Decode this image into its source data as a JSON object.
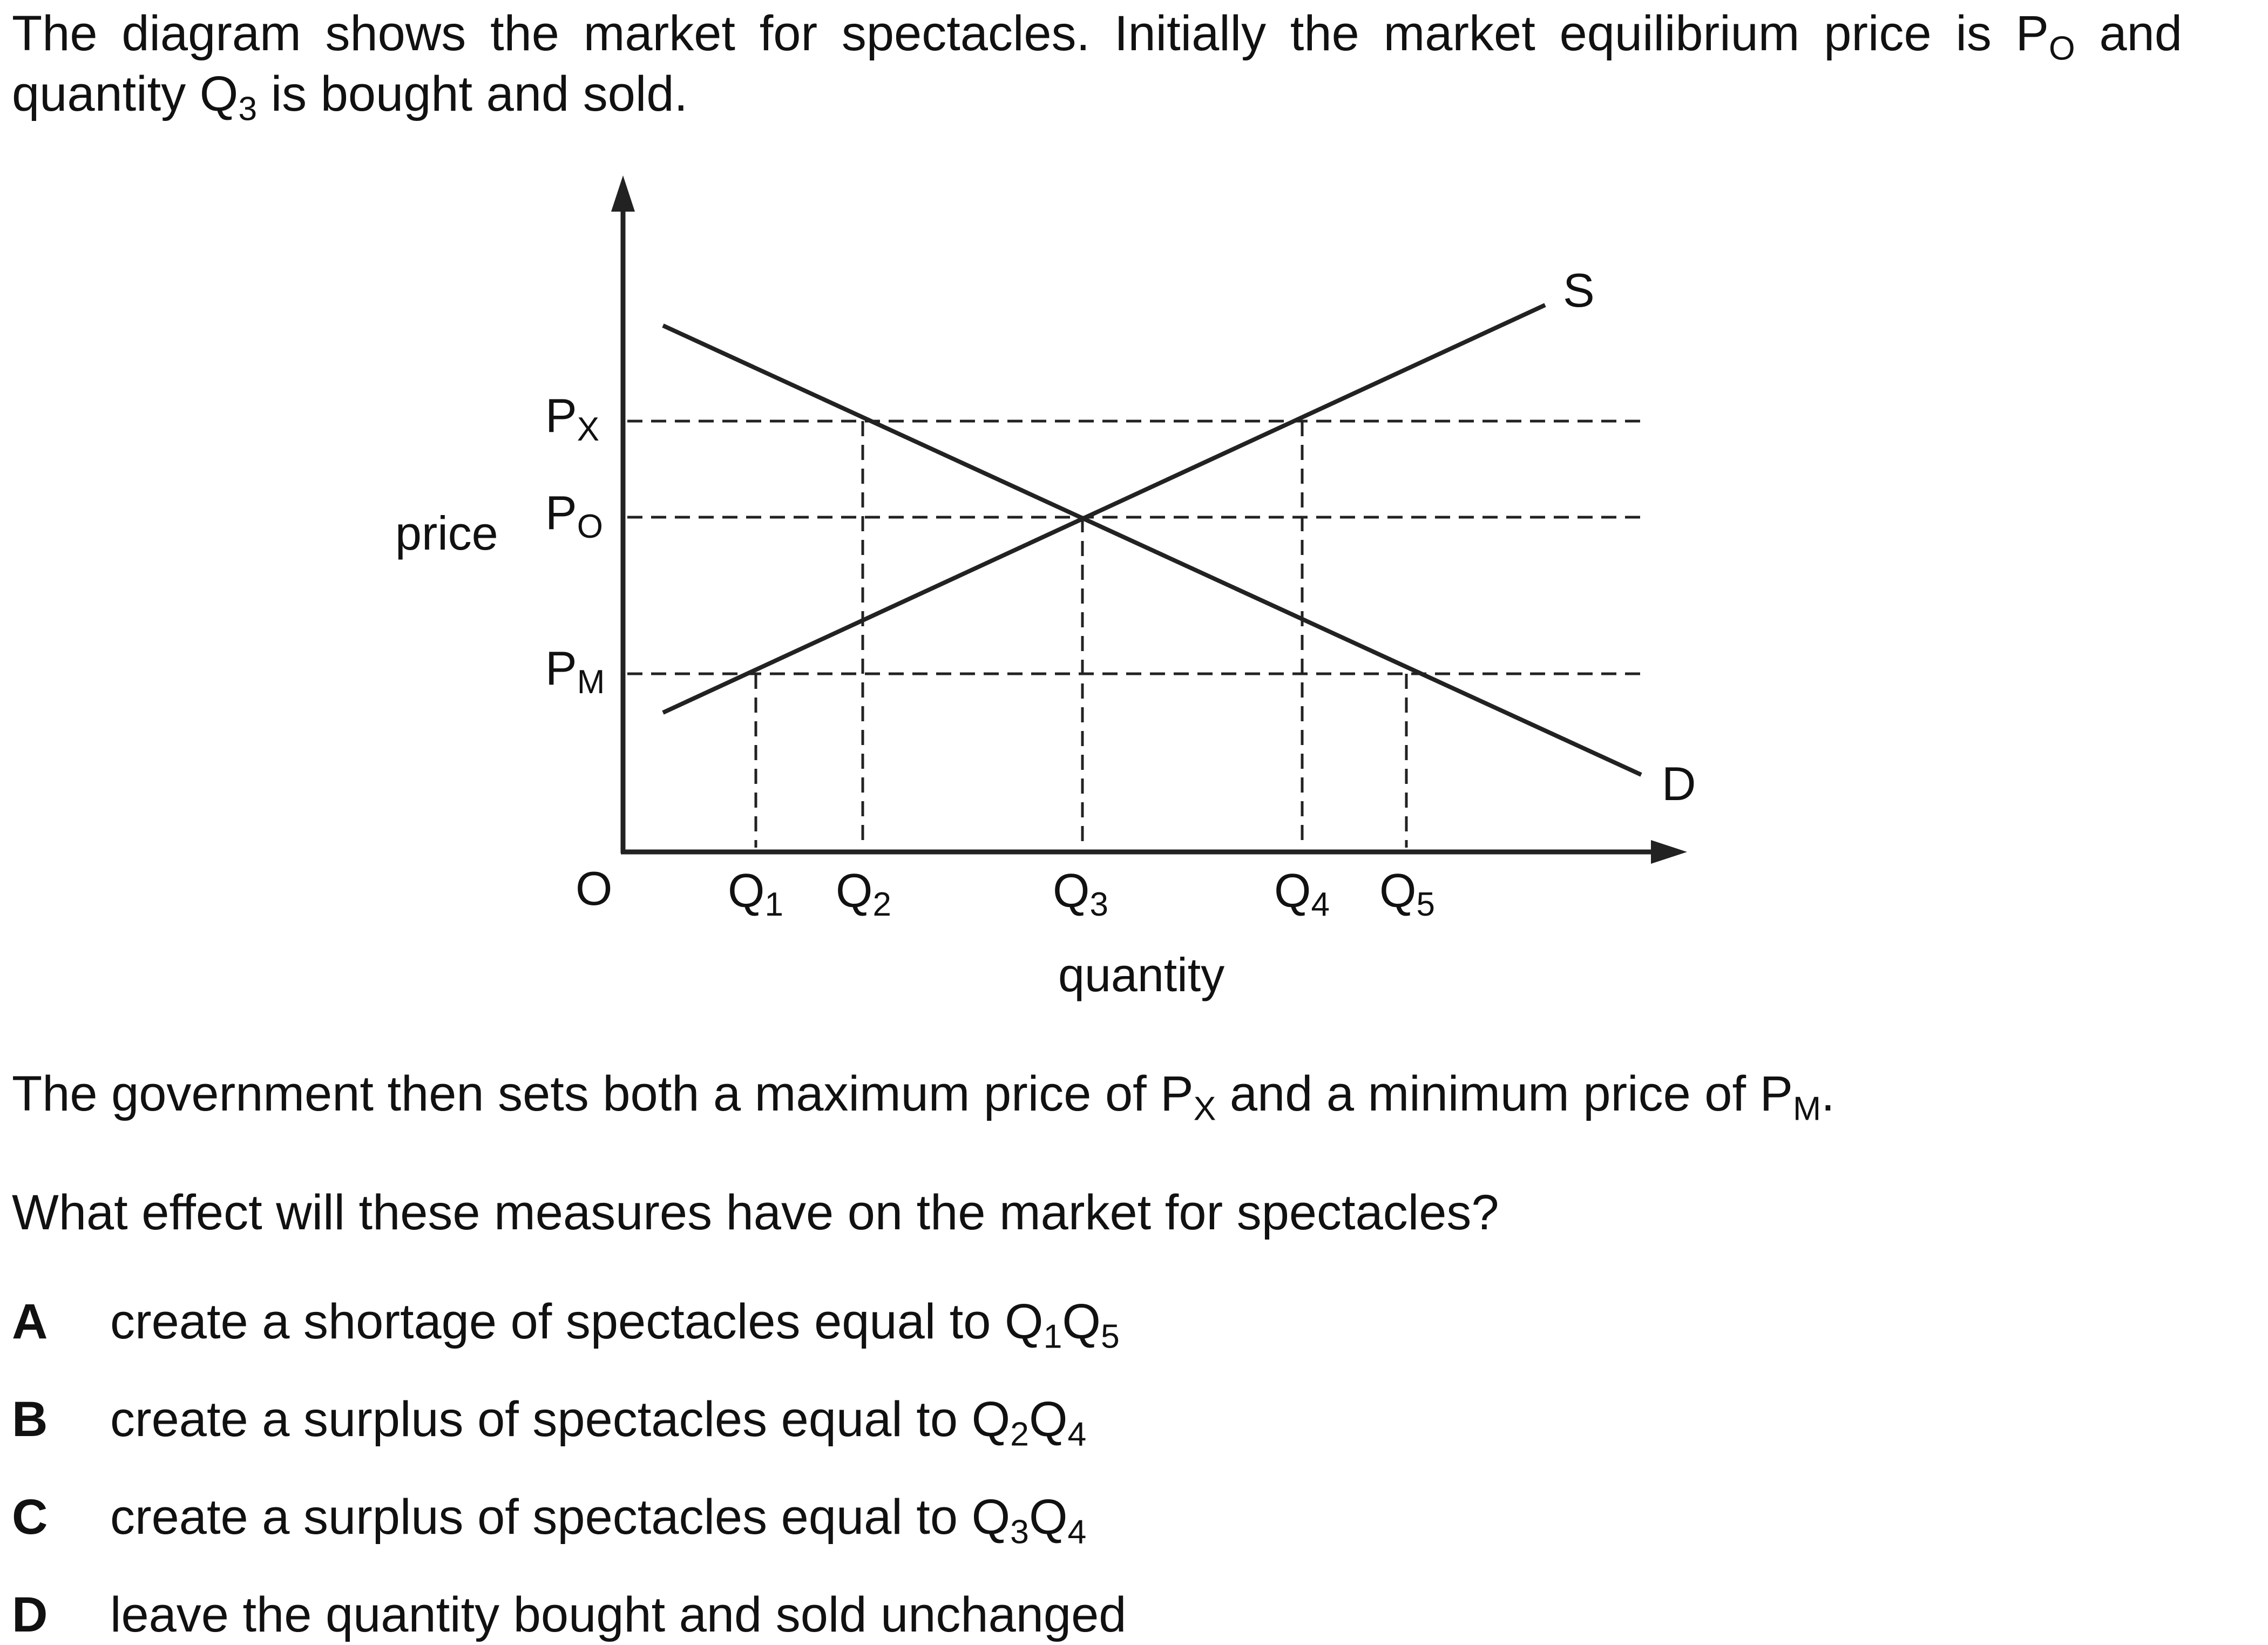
{
  "intro": {
    "text_a": "The diagram shows the market for spectacles. Initially the market equilibrium price is P",
    "sub_a": "O",
    "text_b": " and quantity Q",
    "sub_b": "3",
    "text_c": " is bought and sold."
  },
  "diagram": {
    "y_axis_label": "price",
    "x_axis_label": "quantity",
    "origin_label": "O",
    "price_labels": [
      {
        "base": "P",
        "sub": "X"
      },
      {
        "base": "P",
        "sub": "O"
      },
      {
        "base": "P",
        "sub": "M"
      }
    ],
    "quantity_labels": [
      {
        "base": "Q",
        "sub": "1"
      },
      {
        "base": "Q",
        "sub": "2"
      },
      {
        "base": "Q",
        "sub": "3"
      },
      {
        "base": "Q",
        "sub": "4"
      },
      {
        "base": "Q",
        "sub": "5"
      }
    ],
    "supply_label": "S",
    "demand_label": "D"
  },
  "statement": {
    "text_a": "The government then sets both a maximum price of P",
    "sub_a": "X",
    "text_b": " and a minimum price of P",
    "sub_b": "M",
    "text_c": "."
  },
  "question": "What effect will these measures have on the market for spectacles?",
  "options": [
    {
      "letter": "A",
      "text": "create a shortage of spectacles equal to Q",
      "s1": "1",
      "mid": "Q",
      "s2": "5"
    },
    {
      "letter": "B",
      "text": "create a surplus of spectacles equal to Q",
      "s1": "2",
      "mid": "Q",
      "s2": "4"
    },
    {
      "letter": "C",
      "text": "create a surplus of spectacles equal to Q",
      "s1": "3",
      "mid": "Q",
      "s2": "4"
    },
    {
      "letter": "D",
      "text": "leave the quantity bought and sold unchanged"
    }
  ]
}
